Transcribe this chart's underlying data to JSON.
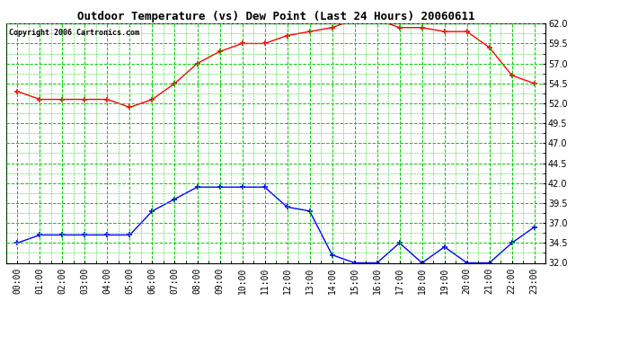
{
  "title": "Outdoor Temperature (vs) Dew Point (Last 24 Hours) 20060611",
  "copyright": "Copyright 2006 Cartronics.com",
  "x_labels": [
    "00:00",
    "01:00",
    "02:00",
    "03:00",
    "04:00",
    "05:00",
    "06:00",
    "07:00",
    "08:00",
    "09:00",
    "10:00",
    "11:00",
    "12:00",
    "13:00",
    "14:00",
    "15:00",
    "16:00",
    "17:00",
    "18:00",
    "19:00",
    "20:00",
    "21:00",
    "22:00",
    "23:00"
  ],
  "temp_data": [
    53.5,
    52.5,
    52.5,
    52.5,
    52.5,
    51.5,
    52.5,
    54.5,
    57.0,
    58.5,
    59.5,
    59.5,
    60.5,
    61.0,
    61.5,
    62.5,
    62.5,
    61.5,
    61.5,
    61.0,
    61.0,
    59.0,
    55.5,
    54.5
  ],
  "dew_data": [
    34.5,
    35.5,
    35.5,
    35.5,
    35.5,
    35.5,
    38.5,
    40.0,
    41.5,
    41.5,
    41.5,
    41.5,
    39.0,
    38.5,
    33.0,
    32.0,
    32.0,
    34.5,
    32.0,
    34.0,
    32.0,
    32.0,
    34.5,
    36.5
  ],
  "temp_color": "#ff0000",
  "dew_color": "#0000ff",
  "bg_color": "#ffffff",
  "plot_bg": "#ffffff",
  "grid_color": "#00cc00",
  "y_min": 32.0,
  "y_max": 62.0,
  "y_ticks": [
    32.0,
    34.5,
    37.0,
    39.5,
    42.0,
    44.5,
    47.0,
    49.5,
    52.0,
    54.5,
    57.0,
    59.5,
    62.0
  ],
  "title_fontsize": 9,
  "copyright_fontsize": 6,
  "tick_fontsize": 7
}
